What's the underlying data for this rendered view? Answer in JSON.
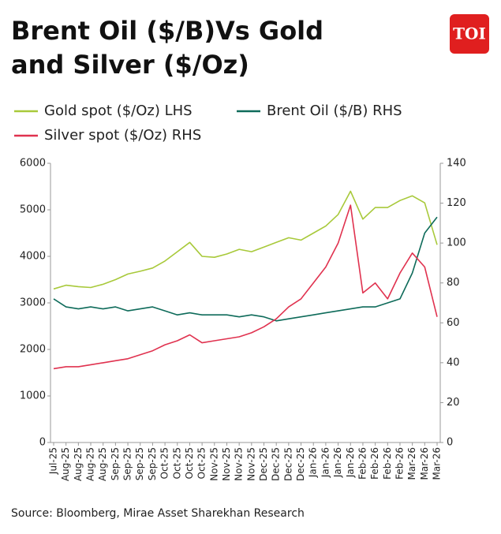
{
  "chart_data": {
    "type": "line",
    "title": "Brent Oil ($/B)Vs Gold and Silver ($/Oz)",
    "brand": "TOI",
    "source": "Source: Bloomberg, Mirae Asset Sharekhan Research",
    "categories": [
      "Jul-25",
      "Aug-25",
      "Aug-25",
      "Aug-25",
      "Aug-25",
      "Sep-25",
      "Sep-25",
      "Sep-25",
      "Sep-25",
      "Oct-25",
      "Oct-25",
      "Oct-25",
      "Oct-25",
      "Nov-25",
      "Nov-25",
      "Nov-25",
      "Nov-25",
      "Dec-25",
      "Dec-25",
      "Dec-25",
      "Dec-25",
      "Jan-26",
      "Jan-26",
      "Jan-26",
      "Jan-26",
      "Feb-26",
      "Feb-26",
      "Feb-26",
      "Feb-26",
      "Mar-26",
      "Mar-26",
      "Mar-26"
    ],
    "series": [
      {
        "name": "Gold spot ($/Oz) LHS",
        "color": "#a8c93a",
        "axis": "y",
        "values": [
          3300,
          3380,
          3350,
          3330,
          3400,
          3500,
          3620,
          3680,
          3750,
          3900,
          4100,
          4300,
          4000,
          3980,
          4050,
          4150,
          4100,
          4200,
          4300,
          4400,
          4350,
          4500,
          4650,
          4900,
          5400,
          4800,
          5050,
          5050,
          5200,
          5300,
          5150,
          4250
        ]
      },
      {
        "name": "Brent Oil ($/B) RHS",
        "color": "#0e6b5a",
        "axis": "y2",
        "values": [
          72,
          68,
          67,
          68,
          67,
          68,
          66,
          67,
          68,
          66,
          64,
          65,
          64,
          64,
          64,
          63,
          64,
          63,
          61,
          62,
          63,
          64,
          65,
          66,
          67,
          68,
          68,
          70,
          72,
          85,
          105,
          113
        ]
      },
      {
        "name": "Silver spot ($/Oz) RHS",
        "color": "#e0324f",
        "axis": "y2",
        "values": [
          37,
          38,
          38,
          39,
          40,
          41,
          42,
          44,
          46,
          49,
          51,
          54,
          50,
          51,
          52,
          53,
          55,
          58,
          62,
          68,
          72,
          80,
          88,
          100,
          119,
          75,
          80,
          72,
          85,
          95,
          88,
          63
        ]
      }
    ],
    "ylim": [
      0,
      6000
    ],
    "yticks": [
      0,
      1000,
      2000,
      3000,
      4000,
      5000,
      6000
    ],
    "y2lim": [
      0,
      140
    ],
    "y2ticks": [
      0,
      20,
      40,
      60,
      80,
      100,
      120,
      140
    ]
  }
}
